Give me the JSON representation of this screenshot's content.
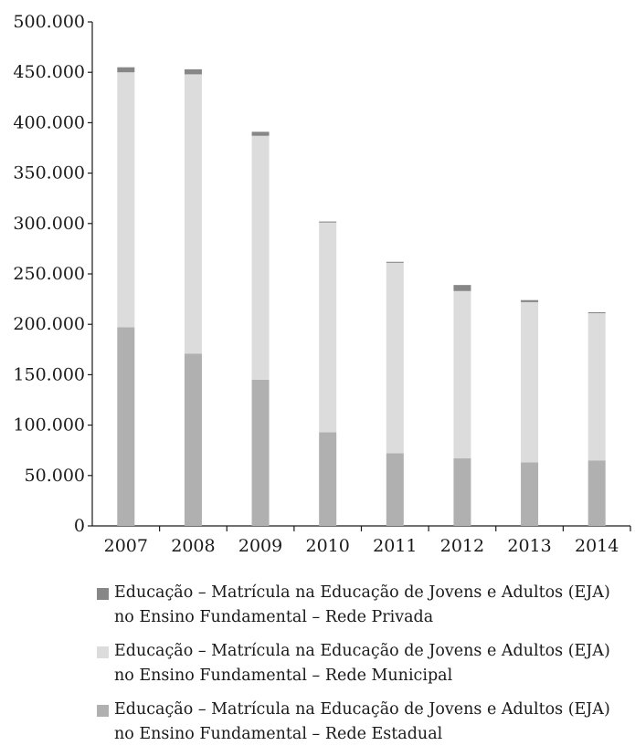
{
  "chart_data": {
    "type": "bar",
    "stacked": true,
    "categories": [
      "2007",
      "2008",
      "2009",
      "2010",
      "2011",
      "2012",
      "2013",
      "2014"
    ],
    "y_ticks": [
      "0",
      "50.000",
      "100.000",
      "150.000",
      "200.000",
      "250.000",
      "300.000",
      "350.000",
      "400.000",
      "450.000",
      "500.000"
    ],
    "ylim": [
      0,
      500000
    ],
    "grid": false,
    "legend_position": "bottom",
    "series": [
      {
        "name": "Educação – Matrícula na Educação de Jovens e Adultos (EJA)\nno Ensino Fundamental – Rede Estadual",
        "color": "#b0b0b0",
        "values": [
          197000,
          171000,
          145000,
          93000,
          72000,
          67000,
          63000,
          65000
        ]
      },
      {
        "name": "Educação – Matrícula na Educação de Jovens e Adultos (EJA)\nno Ensino Fundamental – Rede Municipal",
        "color": "#dcdcdc",
        "values": [
          253000,
          277000,
          242000,
          208000,
          189000,
          166000,
          159000,
          146000
        ]
      },
      {
        "name": "Educação – Matrícula na Educação de Jovens e Adultos (EJA)\nno Ensino Fundamental – Rede Privada",
        "color": "#878787",
        "values": [
          5000,
          5000,
          4000,
          1000,
          1000,
          6000,
          2000,
          1000
        ]
      }
    ],
    "legend_order": [
      2,
      1,
      0
    ]
  }
}
